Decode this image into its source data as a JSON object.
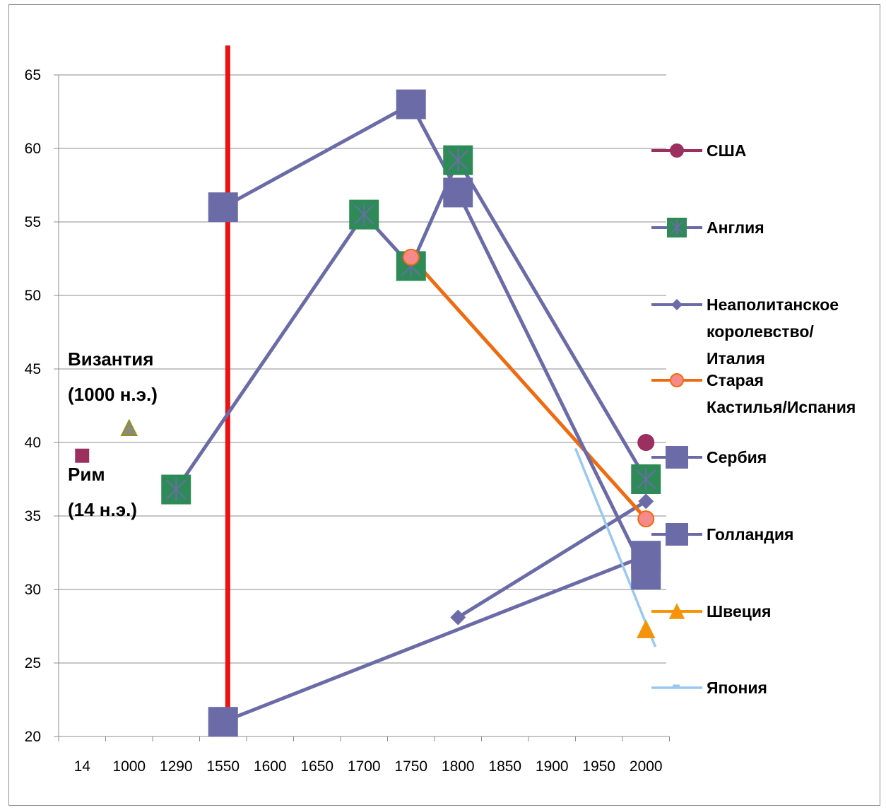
{
  "chart_data": {
    "type": "line",
    "categories": [
      "14",
      "1000",
      "1290",
      "1550",
      "1600",
      "1650",
      "1700",
      "1750",
      "1800",
      "1850",
      "1900",
      "1950",
      "2000"
    ],
    "ylim": [
      20,
      65
    ],
    "yticks": [
      20,
      25,
      30,
      35,
      40,
      45,
      50,
      55,
      60,
      65
    ],
    "grid": true,
    "legend_position": "right",
    "series": [
      {
        "name": "США",
        "color": "#9b3060",
        "marker": "circle",
        "points": [
          {
            "c": 12,
            "v": 40
          }
        ]
      },
      {
        "name": "Англия",
        "color": "#6b6ba8",
        "marker": "square-star",
        "marker_color": "#2e8b57",
        "points": [
          {
            "c": 2,
            "v": 36.8
          },
          {
            "c": 6,
            "v": 55.5
          },
          {
            "c": 7,
            "v": 52
          },
          {
            "c": 8,
            "v": 59.2
          },
          {
            "c": 12,
            "v": 37.5
          }
        ]
      },
      {
        "name": "Неаполитанское королевство/ Италия",
        "color": "#6b6ba8",
        "marker": "diamond",
        "points": [
          {
            "c": 8,
            "v": 28.1
          },
          {
            "c": 12,
            "v": 36
          }
        ]
      },
      {
        "name": "Старая Кастилья/Испания",
        "color": "#f06a10",
        "marker": "circle",
        "marker_color": "#f58a8a",
        "points": [
          {
            "c": 7,
            "v": 52.6
          },
          {
            "c": 12,
            "v": 34.8
          }
        ]
      },
      {
        "name": "Сербия",
        "color": "#6b6ba8",
        "marker": "square",
        "points": [
          {
            "c": 3,
            "v": 21
          },
          {
            "c": 12,
            "v": 32.3
          }
        ]
      },
      {
        "name": "Голландия",
        "color": "#6b6ba8",
        "marker": "square",
        "points": [
          {
            "c": 3,
            "v": 56
          },
          {
            "c": 7,
            "v": 63
          },
          {
            "c": 8,
            "v": 57
          },
          {
            "c": 12,
            "v": 31
          }
        ]
      },
      {
        "name": "Швеция",
        "color": "#f5940a",
        "marker": "triangle",
        "points": [
          {
            "c": 12,
            "v": 27.3
          }
        ]
      },
      {
        "name": "Япония",
        "color": "#99c8f0",
        "marker": "dash",
        "points": [
          {
            "c": 10.5,
            "v": 39.6
          },
          {
            "c": 12.2,
            "v": 26.1
          }
        ]
      }
    ],
    "extra_points": [
      {
        "name": "Рим",
        "c": 0,
        "v": 39.1,
        "marker": "square",
        "color": "#9b3060"
      },
      {
        "name": "Византия",
        "c": 1,
        "v": 41,
        "marker": "triangle",
        "color": "#8a8a7a"
      }
    ],
    "annotations": [
      {
        "lines": [
          "Византия",
          "(1000 н.э.)"
        ]
      },
      {
        "lines": [
          "Рим",
          "(14 н.э.)"
        ]
      }
    ],
    "vertical_marker": {
      "c": 3.1,
      "color": "#ee1111",
      "from": 20.5,
      "to": 67
    }
  }
}
